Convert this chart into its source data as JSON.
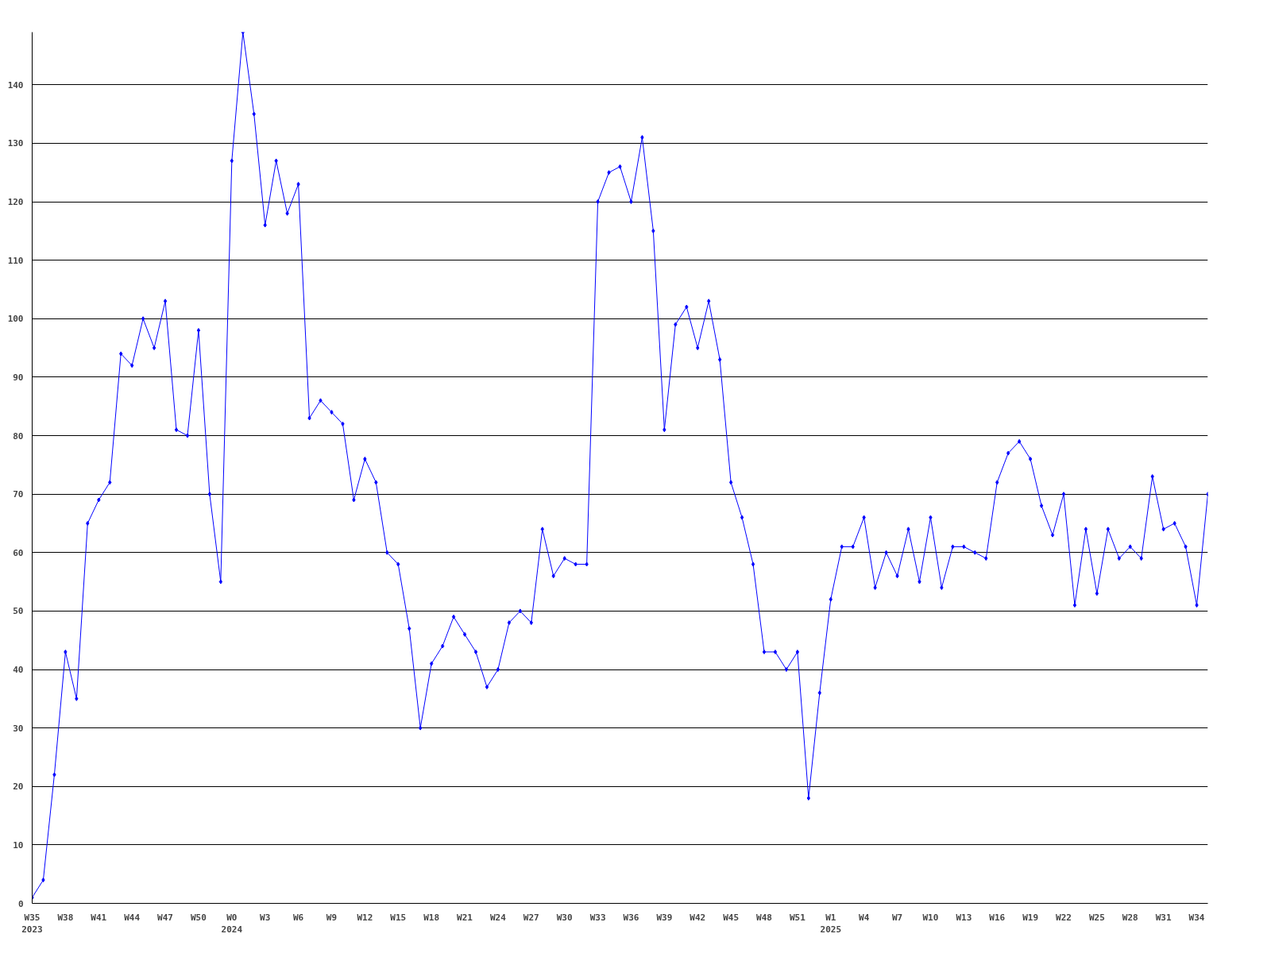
{
  "chart_data": {
    "type": "line",
    "categories": [
      "W35\n2023",
      null,
      null,
      "W38",
      null,
      null,
      "W41",
      null,
      null,
      "W44",
      null,
      null,
      "W47",
      null,
      null,
      "W50",
      null,
      null,
      "W0\n2024",
      null,
      null,
      "W3",
      null,
      null,
      "W6",
      null,
      null,
      "W9",
      null,
      null,
      "W12",
      null,
      null,
      "W15",
      null,
      null,
      "W18",
      null,
      null,
      "W21",
      null,
      null,
      "W24",
      null,
      null,
      "W27",
      null,
      null,
      "W30",
      null,
      null,
      "W33",
      null,
      null,
      "W36",
      null,
      null,
      "W39",
      null,
      null,
      "W42",
      null,
      null,
      "W45",
      null,
      null,
      "W48",
      null,
      null,
      "W51",
      null,
      null,
      "W1\n2025",
      null,
      null,
      "W4",
      null,
      null,
      "W7",
      null,
      null,
      "W10",
      null,
      null,
      "W13",
      null,
      null,
      "W16",
      null,
      null,
      "W19",
      null,
      null,
      "W22",
      null,
      null,
      "W25",
      null,
      null,
      "W28",
      null,
      null,
      "W31",
      null,
      null,
      "W34",
      null
    ],
    "series": [
      {
        "color": "#0000ff",
        "values": [
          1,
          4,
          22,
          43,
          35,
          65,
          69,
          72,
          94,
          92,
          100,
          95,
          103,
          81,
          80,
          98,
          70,
          55,
          127,
          149,
          135,
          116,
          127,
          118,
          123,
          83,
          86,
          84,
          82,
          69,
          76,
          72,
          60,
          58,
          47,
          30,
          41,
          44,
          49,
          46,
          43,
          37,
          40,
          48,
          50,
          48,
          64,
          56,
          59,
          58,
          58,
          120,
          125,
          126,
          120,
          131,
          115,
          81,
          99,
          102,
          95,
          103,
          93,
          72,
          66,
          58,
          43,
          43,
          40,
          43,
          18,
          36,
          52,
          61,
          61,
          66,
          54,
          60,
          56,
          64,
          55,
          66,
          54,
          61,
          61,
          60,
          59,
          72,
          77,
          79,
          76,
          68,
          63,
          70,
          51,
          64,
          53,
          64,
          59,
          61,
          59,
          73,
          64,
          65,
          61,
          51,
          70
        ]
      }
    ],
    "ylim": [
      0,
      149
    ],
    "yticks": [
      0,
      10,
      20,
      30,
      40,
      50,
      60,
      70,
      80,
      90,
      100,
      110,
      120,
      130,
      140
    ],
    "grid": "y",
    "marker": "diamond",
    "line_style": "solid"
  }
}
